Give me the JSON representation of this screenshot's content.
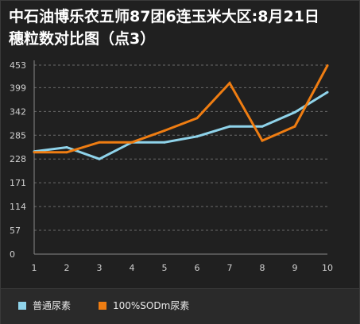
{
  "chart_data": {
    "type": "line",
    "title_line1": "中石油博乐农五师87团6连玉米大区:8月21日",
    "title_line2": "穗粒数对比图（点3）",
    "x": [
      1,
      2,
      3,
      4,
      5,
      6,
      7,
      8,
      9,
      10
    ],
    "y_ticks": [
      0,
      57,
      114,
      171,
      228,
      285,
      342,
      399,
      453
    ],
    "ylim": [
      0,
      453
    ],
    "grid": "horizontal dashed",
    "legend_position": "bottom",
    "series": [
      {
        "name": "普通尿素",
        "color": "#8fd3ea",
        "values": [
          246,
          256,
          228,
          268,
          268,
          282,
          306,
          306,
          340,
          388
        ]
      },
      {
        "name": "100%SODm尿素",
        "color": "#ef7d12",
        "values": [
          244,
          244,
          268,
          268,
          296,
          326,
          410,
          272,
          306,
          452
        ]
      }
    ]
  }
}
